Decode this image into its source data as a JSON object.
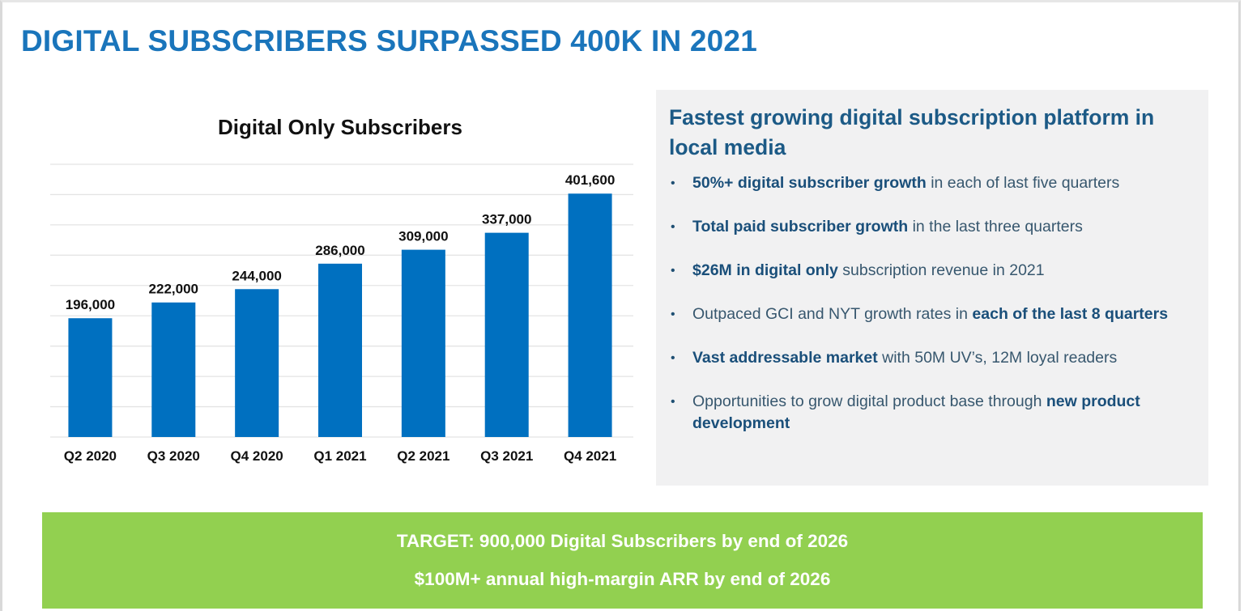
{
  "slide": {
    "title": "DIGITAL SUBSCRIBERS SURPASSED 400K IN 2021"
  },
  "colors": {
    "title_blue": "#1a75bb",
    "bar_blue": "#0070c0",
    "panel_gray": "#f1f1f2",
    "panel_heading": "#1c5a86",
    "banner_green": "#92d050"
  },
  "chart_data": {
    "type": "bar",
    "title": "Digital Only Subscribers",
    "categories": [
      "Q2 2020",
      "Q3 2020",
      "Q4 2020",
      "Q1 2021",
      "Q2 2021",
      "Q3 2021",
      "Q4 2021"
    ],
    "values": [
      196000,
      222000,
      244000,
      286000,
      309000,
      337000,
      401600
    ],
    "data_labels": [
      "196,000",
      "222,000",
      "244,000",
      "286,000",
      "309,000",
      "337,000",
      "401,600"
    ],
    "xlabel": "",
    "ylabel": "",
    "ylim": [
      0,
      450000
    ],
    "y_gridline_step": 50000,
    "y_tick_labels_visible": false,
    "grid": true,
    "legend": "none"
  },
  "panel": {
    "heading": "Fastest growing digital subscription platform in local media",
    "bullet_glyph": "•",
    "bullets": [
      {
        "bold": "50%+ digital subscriber growth",
        "rest": " in each of last five quarters"
      },
      {
        "bold": "Total paid subscriber growth",
        "rest": " in the last three quarters"
      },
      {
        "bold": "$26M in digital only",
        "rest": " subscription revenue in 2021"
      },
      {
        "lead": "Outpaced GCI and NYT growth rates in ",
        "bold": "each of the last 8 quarters"
      },
      {
        "bold": "Vast addressable market",
        "rest": " with 50M UV’s, 12M loyal readers"
      },
      {
        "lead": "Opportunities to grow digital product base through ",
        "bold": "new product development"
      }
    ]
  },
  "banner": {
    "line1": "TARGET: 900,000 Digital Subscribers by end of 2026",
    "line2": "$100M+ annual high-margin ARR by end of 2026"
  }
}
